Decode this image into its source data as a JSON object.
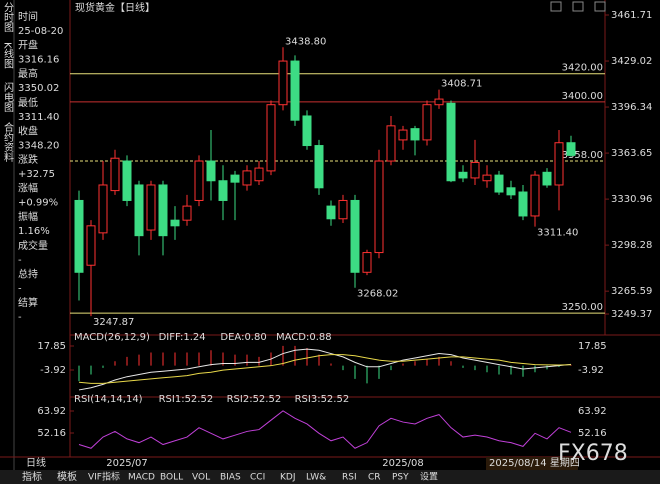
{
  "header": {
    "title": "现货黄金【日线】"
  },
  "side_tabs": [
    "分时图",
    "K线图",
    "闪电图",
    "合约资料"
  ],
  "info": [
    {
      "label": "时间",
      "value": "25-08-20",
      "color": "#dddddd"
    },
    {
      "label": "开盘",
      "value": "3316.16",
      "color": "#ff4040"
    },
    {
      "label": "最高",
      "value": "3350.02",
      "color": "#ff4040"
    },
    {
      "label": "最低",
      "value": "3311.40",
      "color": "#3ddc84"
    },
    {
      "label": "收盘",
      "value": "3348.20",
      "color": "#ff4040"
    },
    {
      "label": "涨跌",
      "value": "+32.75",
      "color": "#ff4040"
    },
    {
      "label": "涨幅",
      "value": "+0.99%",
      "color": "#ff4040"
    },
    {
      "label": "振幅",
      "value": "1.16%",
      "color": "#dddddd"
    },
    {
      "label": "成交量",
      "value": "-",
      "color": "#dddddd"
    },
    {
      "label": "总持",
      "value": "-",
      "color": "#dddddd"
    },
    {
      "label": "结算",
      "value": "-",
      "color": "#dddddd"
    }
  ],
  "chart_data": [
    {
      "type": "candlestick",
      "ylim": [
        3249.37,
        3461.71
      ],
      "yticks": [
        {
          "value": 3461.71,
          "label": "3461.71"
        },
        {
          "value": 3429.02,
          "label": "3429.02"
        },
        {
          "value": 3396.34,
          "label": "3396.34"
        },
        {
          "value": 3363.65,
          "label": "3363.65"
        },
        {
          "value": 3330.96,
          "label": "3330.96"
        },
        {
          "value": 3298.28,
          "label": "3298.28"
        },
        {
          "value": 3265.59,
          "label": "3265.59"
        },
        {
          "value": 3249.37,
          "label": "3249.37"
        }
      ],
      "open": [
        3330,
        3284,
        3307,
        3337,
        3358,
        3341,
        3309,
        3341,
        3316,
        3316,
        3330,
        3358,
        3344,
        3348,
        3341,
        3344,
        3351,
        3398,
        3429,
        3390,
        3369,
        3326,
        3317,
        3330,
        3279,
        3293,
        3358,
        3373,
        3381,
        3373,
        3398,
        3399,
        3350,
        3346,
        3344,
        3348,
        3339,
        3336,
        3319,
        3350,
        3341,
        3371
      ],
      "high": [
        3337,
        3316,
        3358,
        3366,
        3362,
        3344,
        3344,
        3344,
        3326,
        3334,
        3362,
        3380,
        3355,
        3351,
        3355,
        3358,
        3401,
        3438.8,
        3433,
        3394,
        3373,
        3330,
        3334,
        3334,
        3295,
        3366,
        3390,
        3383,
        3383,
        3401,
        3408.71,
        3401,
        3355,
        3373,
        3355,
        3351,
        3344,
        3341,
        3351,
        3353,
        3380,
        3376
      ],
      "low": [
        3259,
        3247.87,
        3302,
        3334,
        3326,
        3291,
        3302,
        3291,
        3302,
        3312,
        3326,
        3330,
        3316,
        3316,
        3337,
        3341,
        3348,
        3394,
        3383,
        3366,
        3334,
        3312,
        3314,
        3268.02,
        3277,
        3289,
        3355,
        3366,
        3362,
        3369,
        3395,
        3343,
        3343,
        3341,
        3339,
        3334,
        3331,
        3316,
        3311.4,
        3339,
        3323,
        3361
      ],
      "close": [
        3279,
        3312,
        3341,
        3360,
        3330,
        3305,
        3341,
        3305,
        3312,
        3326,
        3358,
        3344,
        3330,
        3343,
        3351,
        3353,
        3398,
        3429,
        3387,
        3369,
        3339,
        3317,
        3330,
        3279,
        3293,
        3358,
        3383,
        3380,
        3373,
        3398,
        3402,
        3344,
        3346,
        3357,
        3348,
        3336,
        3334,
        3319,
        3348,
        3341,
        3371,
        3362
      ],
      "up_color": "#ff3232",
      "down_color": "#3ddc84",
      "annotations": [
        {
          "value": 3438.8,
          "label": "3438.80",
          "color": "#ff4040"
        },
        {
          "value": 3408.71,
          "label": "3408.71",
          "color": "#ff4040"
        },
        {
          "value": 3268.02,
          "label": "3268.02",
          "color": "#3ddc84"
        },
        {
          "value": 3311.4,
          "label": "3311.40",
          "color": "#3ddc84"
        },
        {
          "value": 3247.87,
          "label": "3247.87",
          "color": "#3ddc84"
        }
      ],
      "price_lines": [
        {
          "value": 3420,
          "label": "3420.00",
          "color": "#e8e07a",
          "dashed": false
        },
        {
          "value": 3400,
          "label": "3400.00",
          "color": "#c83030",
          "dashed": false
        },
        {
          "value": 3358,
          "label": "3358.00",
          "color": "#e8e07a",
          "dashed": true
        },
        {
          "value": 3250,
          "label": "3250.00",
          "color": "#e8e07a",
          "dashed": false
        }
      ],
      "x_labels": [
        "2025/07",
        "2025/08"
      ]
    },
    {
      "type": "macd",
      "title": "MACD(26,12,9)",
      "ylim": [
        -26.6,
        23.3
      ],
      "yticks": [
        17.85,
        -3.92
      ],
      "series": [
        {
          "name": "DIFF:1.24",
          "color": "#e8e8e8",
          "values": [
            -22,
            -20,
            -17,
            -13,
            -10,
            -8,
            -6,
            -5,
            -4,
            -3,
            -1,
            1,
            2,
            2,
            3,
            3,
            6,
            11,
            14,
            15,
            14,
            11,
            8,
            3,
            -1,
            -1,
            2,
            5,
            7,
            9,
            11,
            10,
            7,
            5,
            3,
            1,
            -1,
            -3,
            -2,
            -1,
            0,
            1.24
          ]
        },
        {
          "name": "DEA:0.80",
          "color": "#e8d84a",
          "values": [
            -15,
            -16,
            -16,
            -15,
            -14,
            -13,
            -12,
            -11,
            -10,
            -9,
            -7,
            -6,
            -4,
            -3,
            -2,
            -1,
            0,
            2,
            5,
            7,
            9,
            10,
            10,
            9,
            7,
            5,
            4,
            4,
            5,
            6,
            7,
            8,
            8,
            7,
            6,
            5,
            3,
            2,
            1,
            0.7,
            0.6,
            0.8
          ]
        },
        {
          "name": "MACD:0.88",
          "color": "#d040d0",
          "values": [
            -14,
            -8,
            -2,
            4,
            8,
            10,
            12,
            12,
            12,
            12,
            12,
            14,
            12,
            10,
            10,
            8,
            12,
            18,
            18,
            16,
            10,
            2,
            -4,
            -12,
            -16,
            -12,
            -4,
            2,
            4,
            6,
            8,
            4,
            -2,
            -4,
            -6,
            -8,
            -8,
            -10,
            -6,
            -3.4,
            -1.2,
            0.88
          ]
        }
      ]
    },
    {
      "type": "rsi",
      "title": "RSI(14,14,14)",
      "ylim": [
        40.4,
        68.73
      ],
      "yticks": [
        63.92,
        52.16
      ],
      "series": [
        {
          "name": "RSI1:52.52",
          "color": "#c040d8",
          "values": [
            46,
            44,
            50,
            53,
            49,
            47,
            50,
            46,
            48,
            50,
            55,
            52,
            49,
            51,
            53,
            54,
            59,
            64,
            60,
            57,
            52,
            48,
            50,
            44,
            47,
            56,
            60,
            58,
            57,
            60,
            62,
            55,
            50,
            51,
            50,
            48,
            47,
            45,
            52,
            49,
            55,
            52.52
          ]
        }
      ],
      "legend_extra": [
        {
          "text": "RSI2:52.52",
          "color": "#e8d84a"
        },
        {
          "text": "RSI3:52.52",
          "color": "#d040d0"
        }
      ]
    }
  ],
  "footer": {
    "period": "日线",
    "date": "2025/08/14 星期四",
    "tabs": [
      "指标",
      "模板"
    ],
    "indicators": [
      "VIF指标",
      "MACD",
      "BOLL",
      "VOL",
      "BIAS",
      "CCI",
      "KDJ",
      "LW&",
      "RSI",
      "CR",
      "PSY",
      "设置"
    ],
    "watermark": "FX678"
  }
}
